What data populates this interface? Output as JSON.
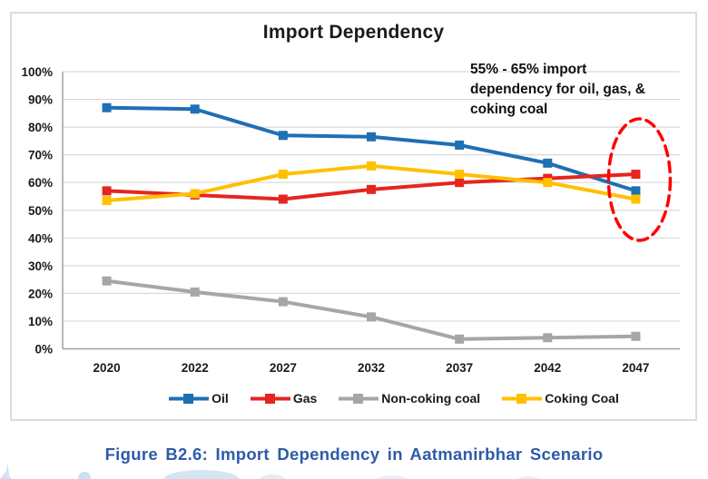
{
  "chart_data": {
    "type": "line",
    "title": "Import Dependency",
    "xlabel": "",
    "ylabel": "",
    "ylim": [
      0,
      100
    ],
    "grid": true,
    "legend_position": "bottom",
    "categories": [
      "2020",
      "2022",
      "2027",
      "2032",
      "2037",
      "2042",
      "2047"
    ],
    "y_ticks": [
      "100%",
      "90%",
      "80%",
      "70%",
      "60%",
      "50%",
      "40%",
      "30%",
      "20%",
      "10%",
      "0%"
    ],
    "series": [
      {
        "name": "Oil",
        "color": "#1F6FB5",
        "values": [
          87,
          86.5,
          77,
          76.5,
          73.5,
          67,
          57
        ]
      },
      {
        "name": "Gas",
        "color": "#E52520",
        "values": [
          57,
          55.5,
          54,
          57.5,
          60,
          61.5,
          63
        ]
      },
      {
        "name": "Non-coking coal",
        "color": "#A6A6A6",
        "values": [
          24.5,
          20.5,
          17,
          11.5,
          3.5,
          4,
          4.5
        ]
      },
      {
        "name": "Coking Coal",
        "color": "#FFC000",
        "values": [
          53.5,
          56,
          63,
          66,
          63,
          60,
          54
        ]
      }
    ],
    "annotation": {
      "text": "55% - 65% import dependency for oil, gas, & coking coal",
      "highlight": "2047 data points circled",
      "ellipse_color": "#FF0000"
    },
    "caption": "Figure B2.6: Import Dependency in Aatmanirbhar Scenario"
  },
  "colors": {
    "caption": "#2D5BA9",
    "gridline": "#D9D9D9",
    "axis": "#9FA0A2",
    "title_text": "#1B1B1B",
    "watermark": "#A9CBE9"
  }
}
